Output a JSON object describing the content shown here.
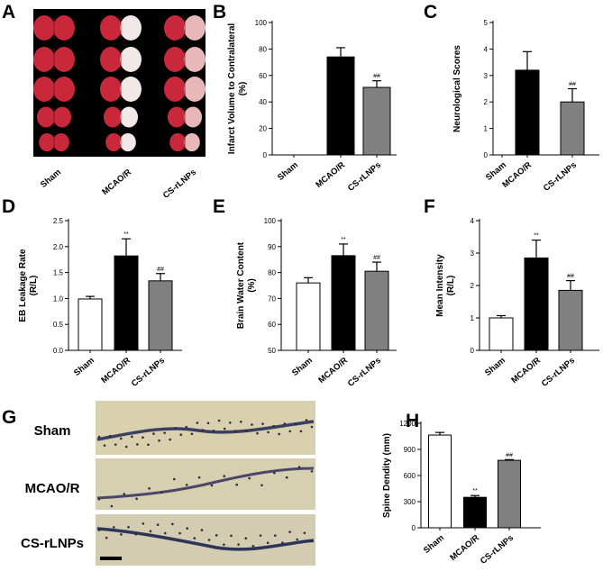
{
  "panel_letters": {
    "A": "A",
    "B": "B",
    "C": "C",
    "D": "D",
    "E": "E",
    "F": "F",
    "G": "G",
    "H": "H"
  },
  "panelA": {
    "categories": [
      "Sham",
      "MCAO/R",
      "CS-rLNPs"
    ]
  },
  "panelG": {
    "rows": [
      "Sham",
      "MCAO/R",
      "CS-rLNPs"
    ]
  },
  "colors": {
    "sham": "#ffffff",
    "mcao": "#000000",
    "cs": "#808080",
    "brain_bg": "#000000",
    "tissue_red": "#c8283a",
    "tissue_pale": "#f2e8e8",
    "micro_bg": "#d8cfac"
  },
  "chart_data": [
    {
      "id": "B",
      "type": "bar",
      "ylabel": "Infarct Volume to Contralateral (%)",
      "ylabel_lines": [
        "Infarct Volume to Contralateral",
        "(%)"
      ],
      "ylim": [
        0,
        100
      ],
      "yticks": [
        0,
        20,
        40,
        60,
        80,
        100
      ],
      "categories": [
        "Sham",
        "MCAO/R",
        "CS-rLNPs"
      ],
      "values": [
        0,
        74,
        51
      ],
      "errors": [
        0,
        7,
        5
      ],
      "annotations": [
        "",
        "",
        "##"
      ]
    },
    {
      "id": "C",
      "type": "bar",
      "ylabel": "Neurological Scores",
      "ylabel_lines": [
        "Neurological Scores"
      ],
      "ylim": [
        0,
        5
      ],
      "yticks": [
        0,
        1,
        2,
        3,
        4,
        5
      ],
      "categories": [
        "Sham",
        "MCAO/R",
        "CS-rLNPs"
      ],
      "values": [
        0,
        3.2,
        2.0
      ],
      "errors": [
        0,
        0.7,
        0.5
      ],
      "annotations": [
        "",
        "",
        "##"
      ]
    },
    {
      "id": "D",
      "type": "bar",
      "ylabel": "EB Leakage Rate (R/L)",
      "ylabel_lines": [
        "EB Leakage Rate",
        "(R/L)"
      ],
      "ylim": [
        0.0,
        2.5
      ],
      "yticks": [
        "0.0",
        "0.5",
        "1.0",
        "1.5",
        "2.0",
        "2.5"
      ],
      "categories": [
        "Sham",
        "MCAO/R",
        "CS-rLNPs"
      ],
      "values": [
        0.99,
        1.82,
        1.34
      ],
      "errors": [
        0.05,
        0.33,
        0.14
      ],
      "annotations": [
        "",
        "**",
        "##"
      ]
    },
    {
      "id": "E",
      "type": "bar",
      "ylabel": "Brain Water Content (%)",
      "ylabel_lines": [
        "Brain Water Content",
        "(%)"
      ],
      "ylim": [
        50,
        100
      ],
      "yticks": [
        50,
        60,
        70,
        80,
        90,
        100
      ],
      "categories": [
        "Sham",
        "MCAO/R",
        "CS-rLNPs"
      ],
      "values": [
        76,
        86.5,
        80.5
      ],
      "errors": [
        2,
        4.5,
        3.5
      ],
      "annotations": [
        "",
        "**",
        "##"
      ]
    },
    {
      "id": "F",
      "type": "bar",
      "ylabel": "Mean Intensity (R/L)",
      "ylabel_lines": [
        "Mean Intensity",
        "(R/L)"
      ],
      "ylim": [
        0,
        4
      ],
      "yticks": [
        0,
        1,
        2,
        3,
        4
      ],
      "categories": [
        "Sham",
        "MCAO/R",
        "CS-rLNPs"
      ],
      "values": [
        1.0,
        2.85,
        1.85
      ],
      "errors": [
        0.07,
        0.55,
        0.3
      ],
      "annotations": [
        "",
        "**",
        "##"
      ]
    },
    {
      "id": "H",
      "type": "bar",
      "ylabel": "Spine Dendity (mm)",
      "ylabel_lines": [
        "Spine Dendity (mm)"
      ],
      "ylim": [
        0,
        1200
      ],
      "yticks": [
        0,
        300,
        600,
        900,
        1200
      ],
      "categories": [
        "Sham",
        "MCAO/R",
        "CS-rLNPs"
      ],
      "values": [
        1065,
        350,
        775
      ],
      "errors": [
        30,
        20,
        8
      ],
      "annotations": [
        "",
        "**",
        "##"
      ]
    }
  ]
}
